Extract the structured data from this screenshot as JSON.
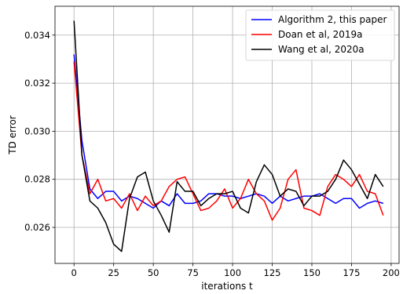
{
  "chart_data": {
    "type": "line",
    "xlabel": "iterations t",
    "ylabel": "TD error",
    "xlim": [
      -12,
      205
    ],
    "ylim": [
      0.0245,
      0.0352
    ],
    "x_ticks": [
      0,
      25,
      50,
      75,
      100,
      125,
      150,
      175,
      200
    ],
    "y_ticks": [
      0.026,
      0.028,
      0.03,
      0.032,
      0.034
    ],
    "y_tick_labels": [
      "0.026",
      "0.028",
      "0.030",
      "0.032",
      "0.034"
    ],
    "grid": true,
    "legend_position": "top-right",
    "x": [
      0,
      5,
      10,
      15,
      20,
      25,
      30,
      35,
      40,
      45,
      50,
      55,
      60,
      65,
      70,
      75,
      80,
      85,
      90,
      95,
      100,
      105,
      110,
      115,
      120,
      125,
      130,
      135,
      140,
      145,
      150,
      155,
      160,
      165,
      170,
      175,
      180,
      185,
      190,
      195
    ],
    "series": [
      {
        "name": "Algorithm 2, this paper",
        "color": "#0000ff",
        "values": [
          0.0332,
          0.0296,
          0.0276,
          0.0272,
          0.0275,
          0.0275,
          0.0271,
          0.0273,
          0.0272,
          0.027,
          0.0268,
          0.0271,
          0.0269,
          0.0274,
          0.027,
          0.027,
          0.0271,
          0.0274,
          0.0274,
          0.0273,
          0.0273,
          0.0272,
          0.0273,
          0.0274,
          0.0273,
          0.027,
          0.0273,
          0.0271,
          0.0272,
          0.0273,
          0.0273,
          0.0274,
          0.0272,
          0.027,
          0.0272,
          0.0272,
          0.0268,
          0.027,
          0.0271,
          0.027
        ]
      },
      {
        "name": "Doan et al, 2019a",
        "color": "#ff0000",
        "values": [
          0.0329,
          0.029,
          0.0274,
          0.028,
          0.0271,
          0.0272,
          0.0268,
          0.0274,
          0.0267,
          0.0273,
          0.0269,
          0.0271,
          0.0277,
          0.028,
          0.0281,
          0.0274,
          0.0267,
          0.0268,
          0.0271,
          0.0276,
          0.0268,
          0.0272,
          0.028,
          0.0274,
          0.0271,
          0.0263,
          0.0268,
          0.028,
          0.0284,
          0.0268,
          0.0267,
          0.0265,
          0.0277,
          0.0282,
          0.028,
          0.0277,
          0.0282,
          0.0275,
          0.0274,
          0.0265
        ]
      },
      {
        "name": "Wang et al, 2020a",
        "color": "#000000",
        "values": [
          0.0346,
          0.029,
          0.0271,
          0.0268,
          0.0262,
          0.0253,
          0.025,
          0.0272,
          0.0281,
          0.0283,
          0.0271,
          0.0265,
          0.0258,
          0.0279,
          0.0275,
          0.0275,
          0.0269,
          0.0272,
          0.0274,
          0.0274,
          0.0275,
          0.0268,
          0.0266,
          0.0279,
          0.0286,
          0.0282,
          0.0273,
          0.0276,
          0.0275,
          0.0269,
          0.0273,
          0.0273,
          0.0275,
          0.028,
          0.0288,
          0.0284,
          0.0278,
          0.0272,
          0.0282,
          0.0277
        ]
      }
    ]
  }
}
